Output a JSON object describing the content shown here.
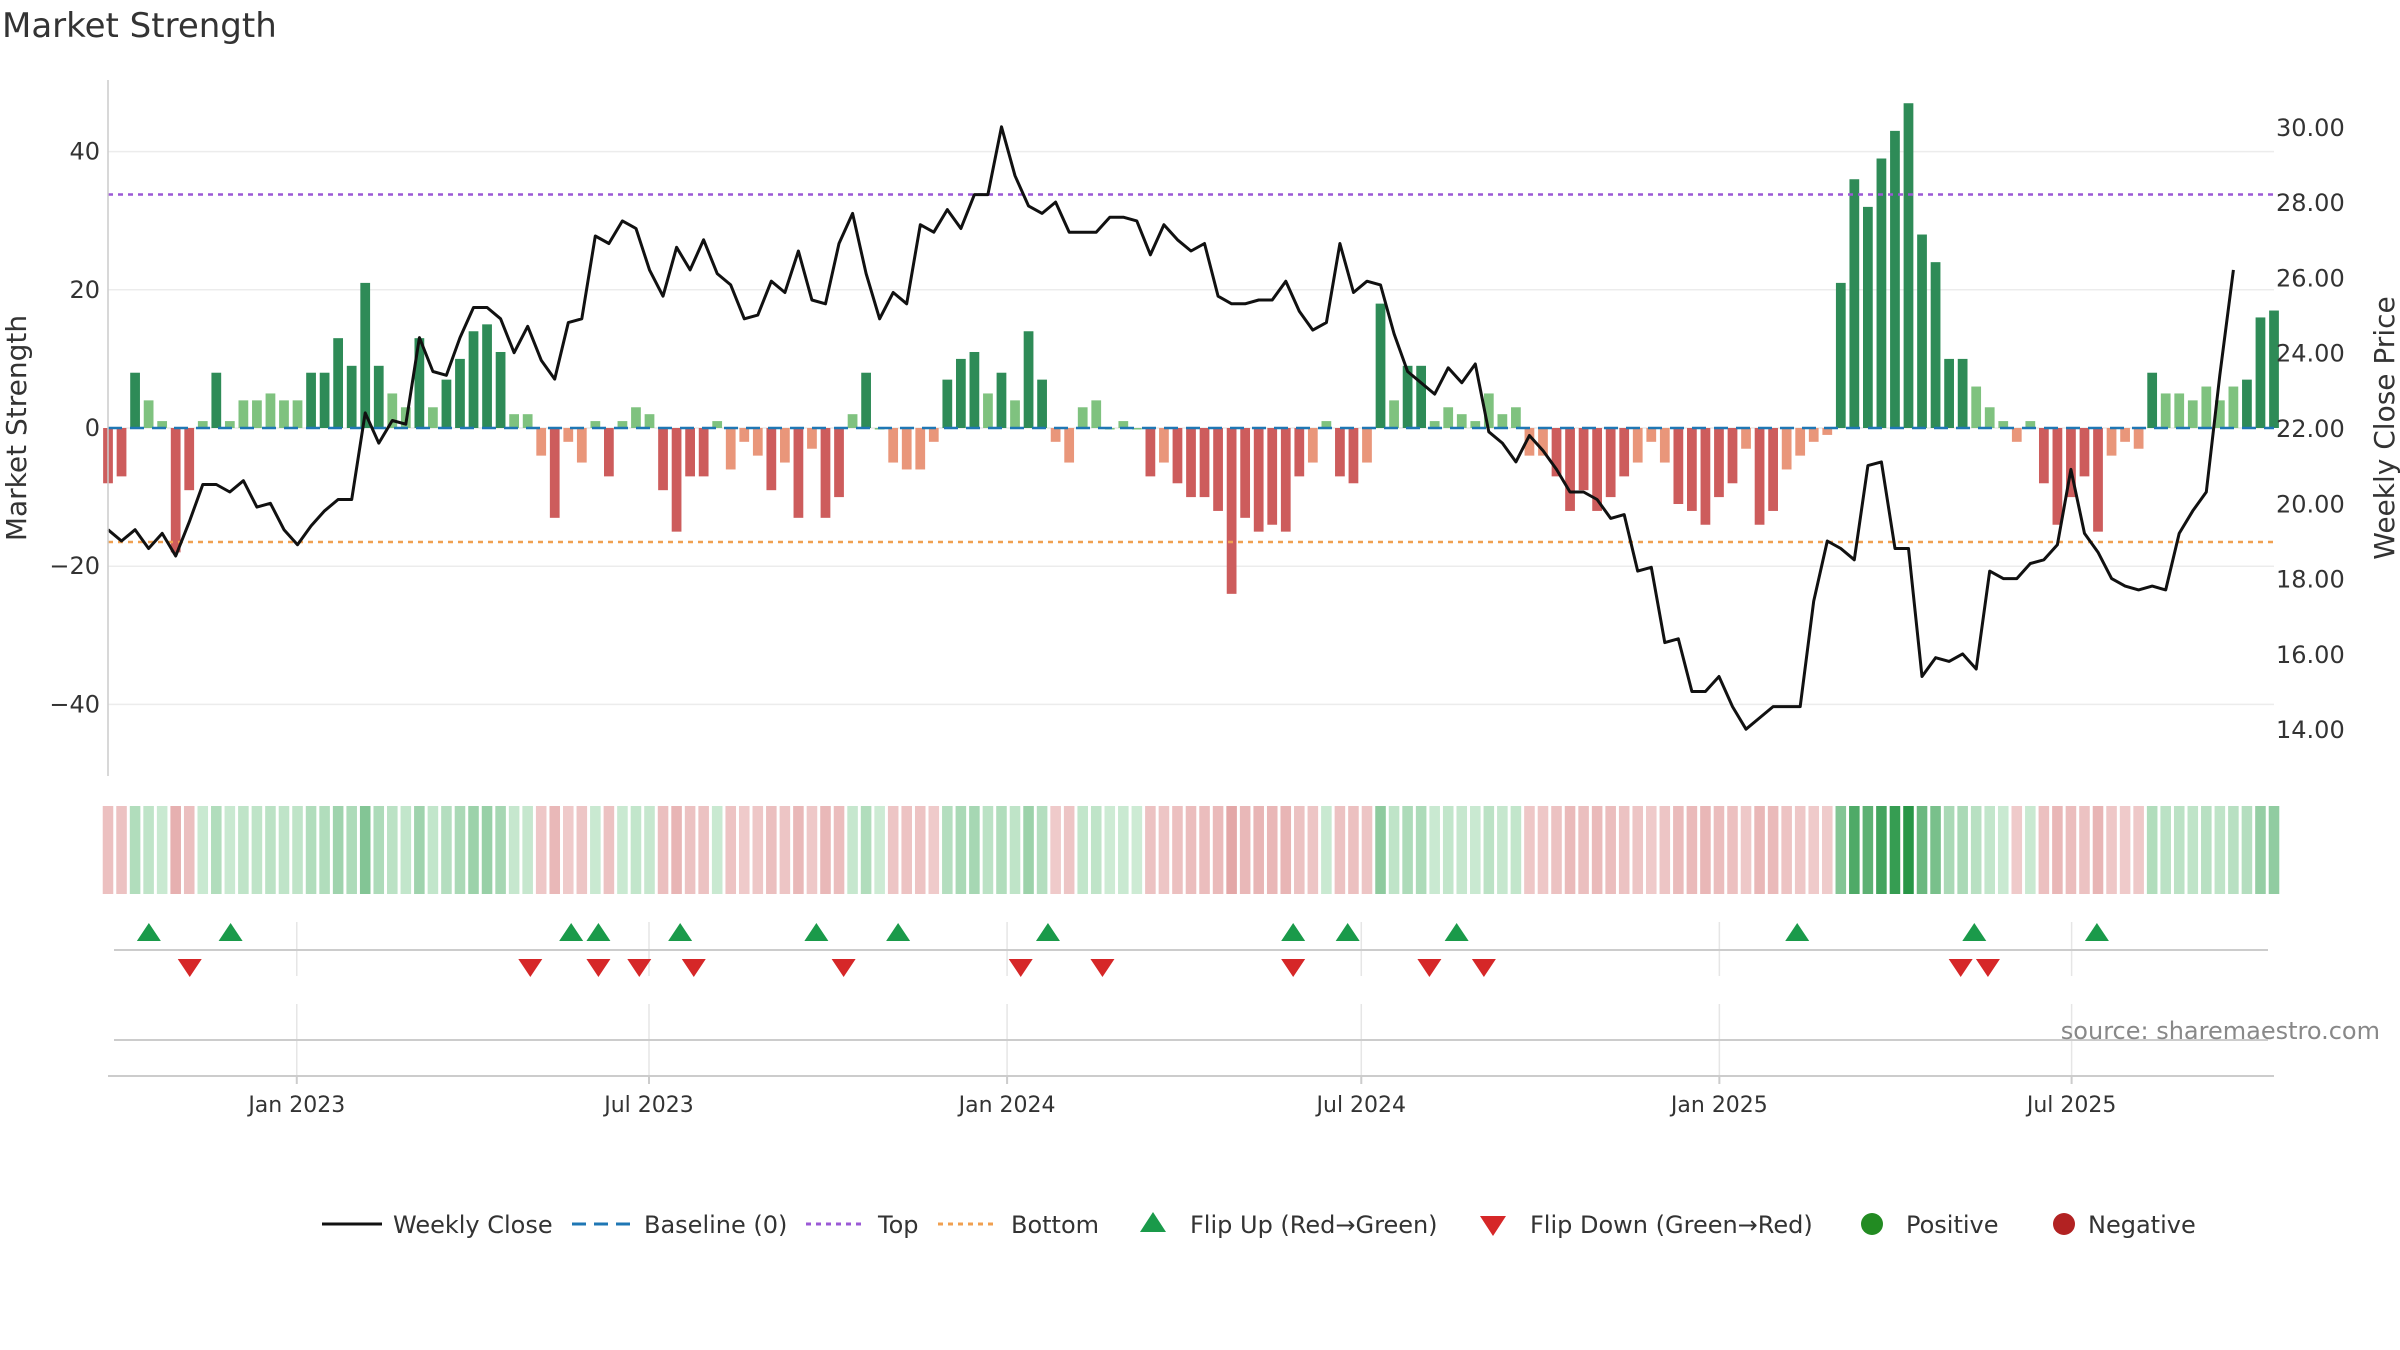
{
  "chart_data": {
    "type": "bar",
    "title": "Market Strength",
    "ylabel": "Market Strength",
    "y2label": "Weekly Close Price",
    "ylim": [
      -50,
      50
    ],
    "y2lim": [
      12.0,
      31.5
    ],
    "yticks": [
      -40,
      -20,
      0,
      20,
      40
    ],
    "yticklabels": [
      "−40",
      "−20",
      "0",
      "20",
      "40"
    ],
    "y2ticks": [
      14,
      16,
      18,
      20,
      22,
      24,
      26,
      28,
      30
    ],
    "y2ticklabels": [
      "14.00",
      "16.00",
      "18.00",
      "20.00",
      "22.00",
      "24.00",
      "26.00",
      "28.00",
      "30.00"
    ],
    "x_start": "2022-09-26",
    "x_end": "2025-10-13",
    "x_ticks": [
      {
        "date": "2023-01-01",
        "label": "Jan 2023"
      },
      {
        "date": "2023-07-01",
        "label": "Jul 2023"
      },
      {
        "date": "2024-01-01",
        "label": "Jan 2024"
      },
      {
        "date": "2024-07-01",
        "label": "Jul 2024"
      },
      {
        "date": "2025-01-01",
        "label": "Jan 2025"
      },
      {
        "date": "2025-07-01",
        "label": "Jul 2025"
      }
    ],
    "top_line": 33.8,
    "bottom_line": -16.5,
    "baseline": 0,
    "grid": true,
    "legend_position": "bottom",
    "strength": [
      -8,
      -7,
      8,
      4,
      1,
      -18,
      -9,
      1,
      8,
      1,
      4,
      4,
      5,
      4,
      4,
      8,
      8,
      13,
      9,
      21,
      9,
      5,
      3,
      13,
      3,
      7,
      10,
      14,
      15,
      11,
      2,
      2,
      -4,
      -13,
      -2,
      -5,
      1,
      -7,
      1,
      3,
      2,
      -9,
      -15,
      -7,
      -7,
      1,
      -6,
      -2,
      -4,
      -9,
      -5,
      -13,
      -3,
      -13,
      -10,
      2,
      8,
      0,
      -5,
      -6,
      -6,
      -2,
      7,
      10,
      11,
      5,
      8,
      4,
      14,
      7,
      -2,
      -5,
      3,
      4,
      0,
      1,
      0,
      -7,
      -5,
      -8,
      -10,
      -10,
      -12,
      -24,
      -13,
      -15,
      -14,
      -15,
      -7,
      -5,
      1,
      -7,
      -8,
      -5,
      18,
      4,
      9,
      9,
      1,
      3,
      2,
      1,
      5,
      2,
      3,
      -4,
      -4,
      -7,
      -12,
      -9,
      -12,
      -10,
      -7,
      -5,
      -2,
      -5,
      -11,
      -12,
      -14,
      -10,
      -8,
      -3,
      -14,
      -12,
      -6,
      -4,
      -2,
      -1,
      21,
      36,
      32,
      39,
      43,
      47,
      28,
      24,
      10,
      10,
      6,
      3,
      1,
      -2,
      1,
      -8,
      -14,
      -10,
      -7,
      -15,
      -4,
      -2,
      -3,
      8,
      5,
      5,
      4,
      6,
      4,
      6,
      7,
      16,
      17
    ],
    "price": [
      19.3,
      19.0,
      19.3,
      18.8,
      19.2,
      18.6,
      19.5,
      20.5,
      20.5,
      20.3,
      20.6,
      19.9,
      20.0,
      19.3,
      18.9,
      19.4,
      19.8,
      20.1,
      20.1,
      22.4,
      21.6,
      22.2,
      22.1,
      24.4,
      23.5,
      23.4,
      24.4,
      25.2,
      25.2,
      24.9,
      24.0,
      24.7,
      23.8,
      23.3,
      24.8,
      24.9,
      27.1,
      26.9,
      27.5,
      27.3,
      26.2,
      25.5,
      26.8,
      26.2,
      27.0,
      26.1,
      25.8,
      24.9,
      25.0,
      25.9,
      25.6,
      26.7,
      25.4,
      25.3,
      26.9,
      27.7,
      26.1,
      24.9,
      25.6,
      25.3,
      27.4,
      27.2,
      27.8,
      27.3,
      28.2,
      28.2,
      30.0,
      28.7,
      27.9,
      27.7,
      28.0,
      27.2,
      27.2,
      27.2,
      27.6,
      27.6,
      27.5,
      26.6,
      27.4,
      27.0,
      26.7,
      26.9,
      25.5,
      25.3,
      25.3,
      25.4,
      25.4,
      25.9,
      25.1,
      24.6,
      24.8,
      26.9,
      25.6,
      25.9,
      25.8,
      24.5,
      23.5,
      23.2,
      22.9,
      23.6,
      23.2,
      23.7,
      21.9,
      21.6,
      21.1,
      21.8,
      21.4,
      20.9,
      20.3,
      20.3,
      20.1,
      19.6,
      19.7,
      18.2,
      18.3,
      16.3,
      16.4,
      15.0,
      15.0,
      15.4,
      14.6,
      14.0,
      14.3,
      14.6,
      14.6,
      14.6,
      17.4,
      19.0,
      18.8,
      18.5,
      21.0,
      21.1,
      18.8,
      18.8,
      15.4,
      15.9,
      15.8,
      16.0,
      15.6,
      18.2,
      18.0,
      18.0,
      18.4,
      18.5,
      18.9,
      20.9,
      19.2,
      18.7,
      18.0,
      17.8,
      17.7,
      17.8,
      17.7,
      19.2,
      19.8,
      20.3,
      23.4,
      26.2
    ],
    "flip_up": [
      "2022-10-17",
      "2022-11-28",
      "2023-05-22",
      "2023-06-05",
      "2023-07-17",
      "2023-09-25",
      "2023-11-06",
      "2024-01-22",
      "2024-05-27",
      "2024-06-24",
      "2024-08-19",
      "2025-02-10",
      "2025-05-12",
      "2025-07-14"
    ],
    "flip_down": [
      "2022-11-07",
      "2023-05-01",
      "2023-06-05",
      "2023-06-26",
      "2023-07-24",
      "2023-10-09",
      "2024-01-08",
      "2024-02-19",
      "2024-05-27",
      "2024-08-05",
      "2024-09-02",
      "2025-05-05",
      "2025-05-19"
    ],
    "series": [
      {
        "name": "Weekly Close",
        "color": "#111111",
        "style": "solid"
      },
      {
        "name": "Baseline (0)",
        "color": "#1f77b4",
        "style": "dashed"
      },
      {
        "name": "Top",
        "color": "#9b59d6",
        "style": "dotted"
      },
      {
        "name": "Bottom",
        "color": "#f0a050",
        "style": "dotted"
      },
      {
        "name": "Flip Up (Red→Green)",
        "color": "#1a9a4a",
        "style": "triangle-up"
      },
      {
        "name": "Flip Down (Green→Red)",
        "color": "#d62728",
        "style": "triangle-down"
      },
      {
        "name": "Positive",
        "color": "#228b22",
        "style": "circle"
      },
      {
        "name": "Negative",
        "color": "#b22222",
        "style": "circle"
      }
    ],
    "source": "source: sharemaestro.com"
  }
}
